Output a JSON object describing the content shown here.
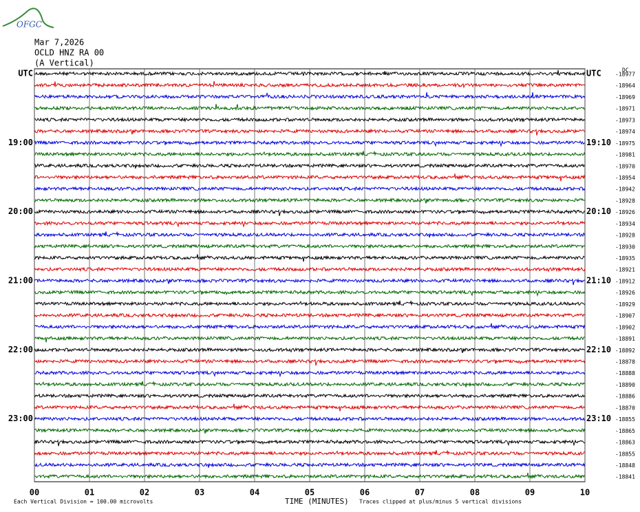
{
  "logo": "OFGC",
  "header": {
    "date": "Mar 7,2026",
    "station": "OCLD HNZ RA 00",
    "component": "(A Vertical)"
  },
  "left_labels": [
    "UTC",
    "19:00",
    "20:00",
    "21:00",
    "22:00",
    "23:00"
  ],
  "right_labels": [
    "UTC",
    "19:10",
    "20:10",
    "21:10",
    "22:10",
    "23:10"
  ],
  "dc_label": "DC",
  "trace_offsets": [
    "-18977",
    "-18964",
    "-18969",
    "-18971",
    "-18973",
    "-18974",
    "-18975",
    "-18981",
    "-18970",
    "-18954",
    "-18942",
    "-18928",
    "-18926",
    "-18934",
    "-18928",
    "-18930",
    "-18935",
    "-18921",
    "-18912",
    "-18926",
    "-18929",
    "-18907",
    "-18902",
    "-18891",
    "-18892",
    "-18878",
    "-18888",
    "-18890",
    "-18886",
    "-18870",
    "-18855",
    "-18865",
    "-18863",
    "-18855",
    "-18848",
    "-18841"
  ],
  "x_ticks": [
    "00",
    "01",
    "02",
    "03",
    "04",
    "05",
    "06",
    "07",
    "08",
    "09",
    "10"
  ],
  "footer": {
    "division": "Each Vertical Division =  100.00 microvolts",
    "axis_title": "TIME (MINUTES)",
    "clip_note": "Traces clipped at plus/minus 5 vertical divisions"
  }
}
